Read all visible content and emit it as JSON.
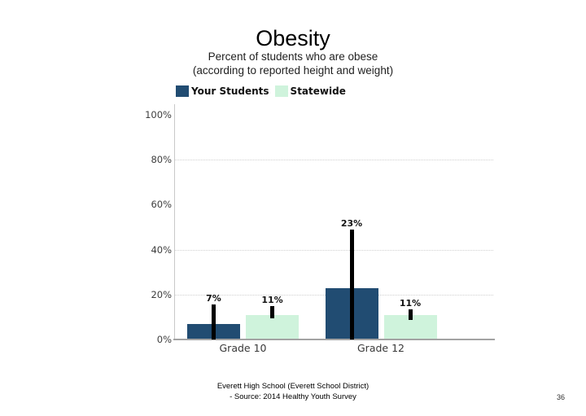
{
  "slide": {
    "title": "Obesity",
    "subtitle_line1": "Percent of students who are obese",
    "subtitle_line2": "(according to reported height and weight)",
    "footer_line1": "Everett High School (Everett School District)",
    "footer_line2": "- Source: 2014 Healthy Youth Survey",
    "page_number": "36"
  },
  "chart_data": {
    "type": "bar",
    "title": "Obesity",
    "subtitle": "Percent of students who are obese (according to reported height and weight)",
    "categories": [
      "Grade 10",
      "Grade 12"
    ],
    "series": [
      {
        "name": "Your Students",
        "color": "#214c72",
        "values": [
          7,
          23
        ],
        "value_labels": [
          "7%",
          "23%"
        ],
        "ci_low": [
          0,
          0
        ],
        "ci_high": [
          15.5,
          49
        ]
      },
      {
        "name": "Statewide",
        "color": "#cff3dc",
        "values": [
          11,
          11
        ],
        "value_labels": [
          "11%",
          "11%"
        ],
        "ci_low": [
          9.5,
          8.7
        ],
        "ci_high": [
          14.8,
          13.4
        ]
      }
    ],
    "ylim": [
      0,
      100
    ],
    "ytick_values": [
      0,
      20,
      40,
      60,
      80,
      100
    ],
    "ytick_labels": [
      "0%",
      "20%",
      "40%",
      "60%",
      "80%",
      "100%"
    ],
    "gridline_values": [
      20,
      40,
      80
    ],
    "grid": "dotted horizontal",
    "legend_position": "top-left above plot",
    "error_bar_color": "#000000"
  }
}
